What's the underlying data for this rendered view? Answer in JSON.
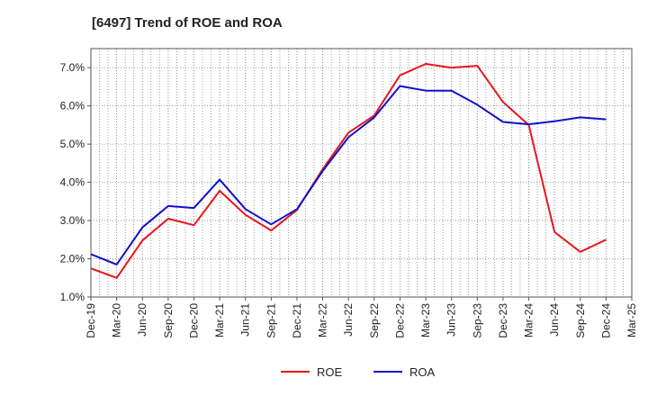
{
  "chart_data": {
    "type": "line",
    "title": "[6497]  Trend of ROE and ROA",
    "x": [
      "Dec-19",
      "Mar-20",
      "Jun-20",
      "Sep-20",
      "Dec-20",
      "Mar-21",
      "Jun-21",
      "Sep-21",
      "Dec-21",
      "Mar-22",
      "Jun-22",
      "Sep-22",
      "Dec-22",
      "Mar-23",
      "Jun-23",
      "Sep-23",
      "Dec-23",
      "Mar-24",
      "Jun-24",
      "Sep-24",
      "Dec-24",
      "Mar-25"
    ],
    "y_ticks": [
      "1.0%",
      "2.0%",
      "3.0%",
      "4.0%",
      "5.0%",
      "6.0%",
      "7.0%"
    ],
    "ylim": [
      1.0,
      7.5
    ],
    "grid": true,
    "legend_position": "bottom",
    "series": [
      {
        "name": "ROE",
        "color": "#e8161b",
        "values": [
          1.75,
          1.5,
          2.48,
          3.05,
          2.88,
          3.78,
          3.15,
          2.74,
          3.28,
          4.35,
          5.3,
          5.75,
          6.8,
          7.1,
          7.0,
          7.05,
          6.1,
          5.5,
          2.7,
          2.18,
          2.5,
          null
        ]
      },
      {
        "name": "ROA",
        "color": "#1010cc",
        "values": [
          2.12,
          1.85,
          2.82,
          3.38,
          3.33,
          4.07,
          3.3,
          2.9,
          3.3,
          4.3,
          5.18,
          5.7,
          6.52,
          6.4,
          6.4,
          6.03,
          5.58,
          5.52,
          5.6,
          5.7,
          5.65,
          null
        ]
      }
    ]
  }
}
